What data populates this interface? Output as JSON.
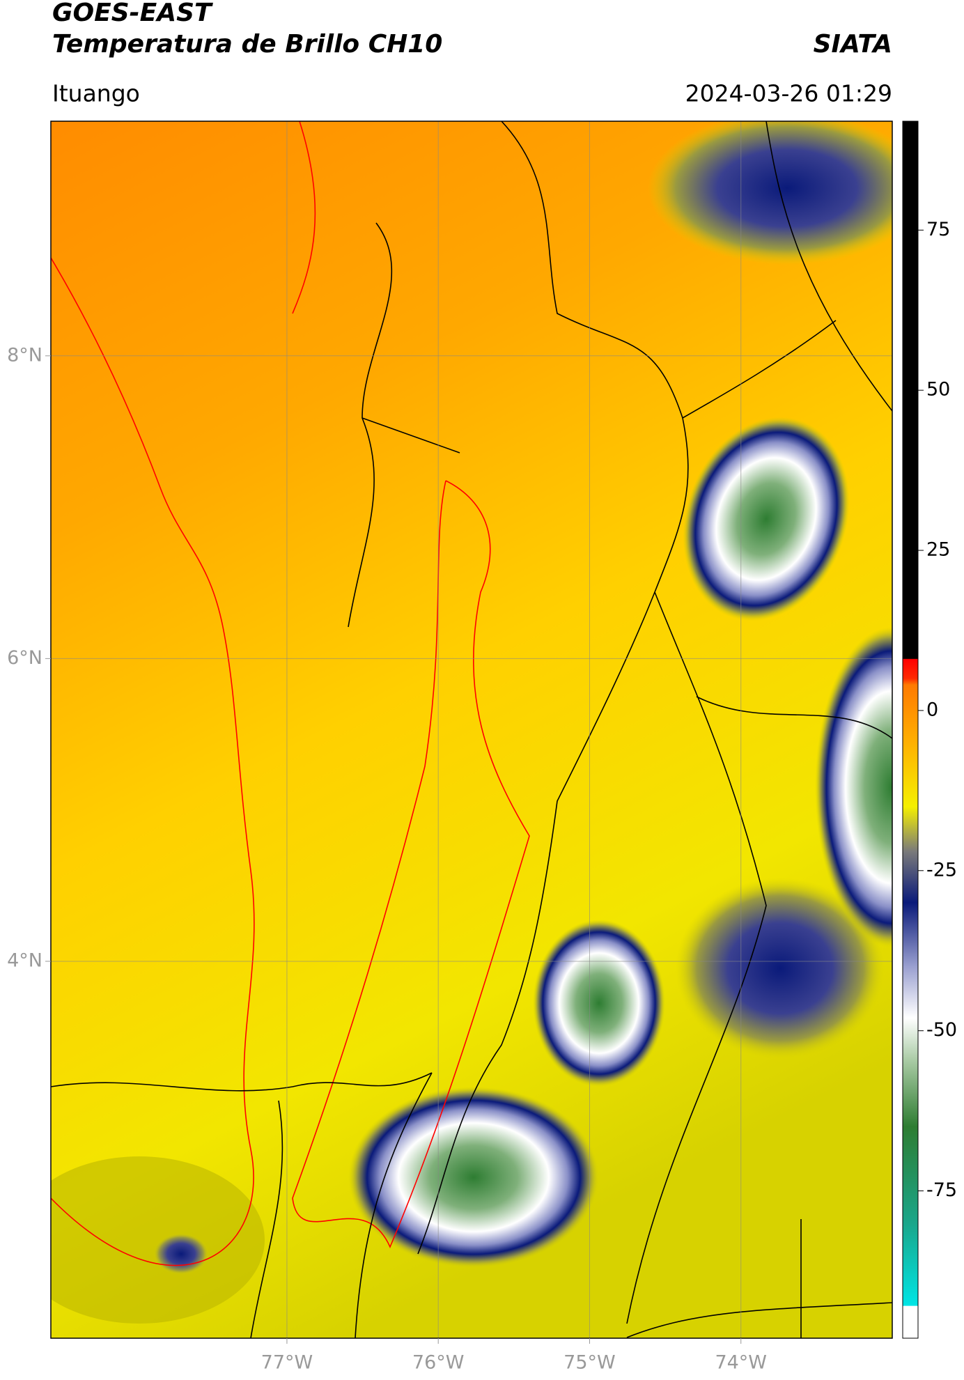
{
  "chart_data": {
    "type": "map",
    "title": "GOES-EAST",
    "subtitle": "Temperatura de Brillo CH10",
    "source": "SIATA",
    "location": "Ituango",
    "datetime": "2024-03-26 01:29",
    "xlim": [
      -78.56,
      -73.0
    ],
    "ylim": [
      1.51,
      9.55
    ],
    "xticks": [
      {
        "value": -77,
        "label": "77°W"
      },
      {
        "value": -76,
        "label": "76°W"
      },
      {
        "value": -75,
        "label": "75°W"
      },
      {
        "value": -74,
        "label": "74°W"
      }
    ],
    "yticks": [
      {
        "value": 4,
        "label": "4°N"
      },
      {
        "value": 6,
        "label": "6°N"
      },
      {
        "value": 8,
        "label": "8°N"
      }
    ],
    "grid": true,
    "colorbar": {
      "lim": [
        -98,
        92
      ],
      "ticks": [
        -75,
        -50,
        -25,
        0,
        25,
        50,
        75
      ],
      "stops": [
        {
          "value": -98,
          "color": "#ffffff"
        },
        {
          "value": -93,
          "color": "#ffffff"
        },
        {
          "value": -92.9,
          "color": "#00e5e5"
        },
        {
          "value": -80,
          "color": "#1aa68a"
        },
        {
          "value": -65,
          "color": "#2e7d32"
        },
        {
          "value": -55,
          "color": "#a5c8a0"
        },
        {
          "value": -48,
          "color": "#ffffff"
        },
        {
          "value": -40,
          "color": "#9aa0d0"
        },
        {
          "value": -30,
          "color": "#0a1a7a"
        },
        {
          "value": -22,
          "color": "#7a7a7a"
        },
        {
          "value": -15,
          "color": "#f5f000"
        },
        {
          "value": -5,
          "color": "#ffb000"
        },
        {
          "value": 4,
          "color": "#ff7a00"
        },
        {
          "value": 5,
          "color": "#ff2a00"
        },
        {
          "value": 8,
          "color": "#ff0000"
        },
        {
          "value": 8.1,
          "color": "#000000"
        },
        {
          "value": 92,
          "color": "#000000"
        }
      ]
    }
  }
}
